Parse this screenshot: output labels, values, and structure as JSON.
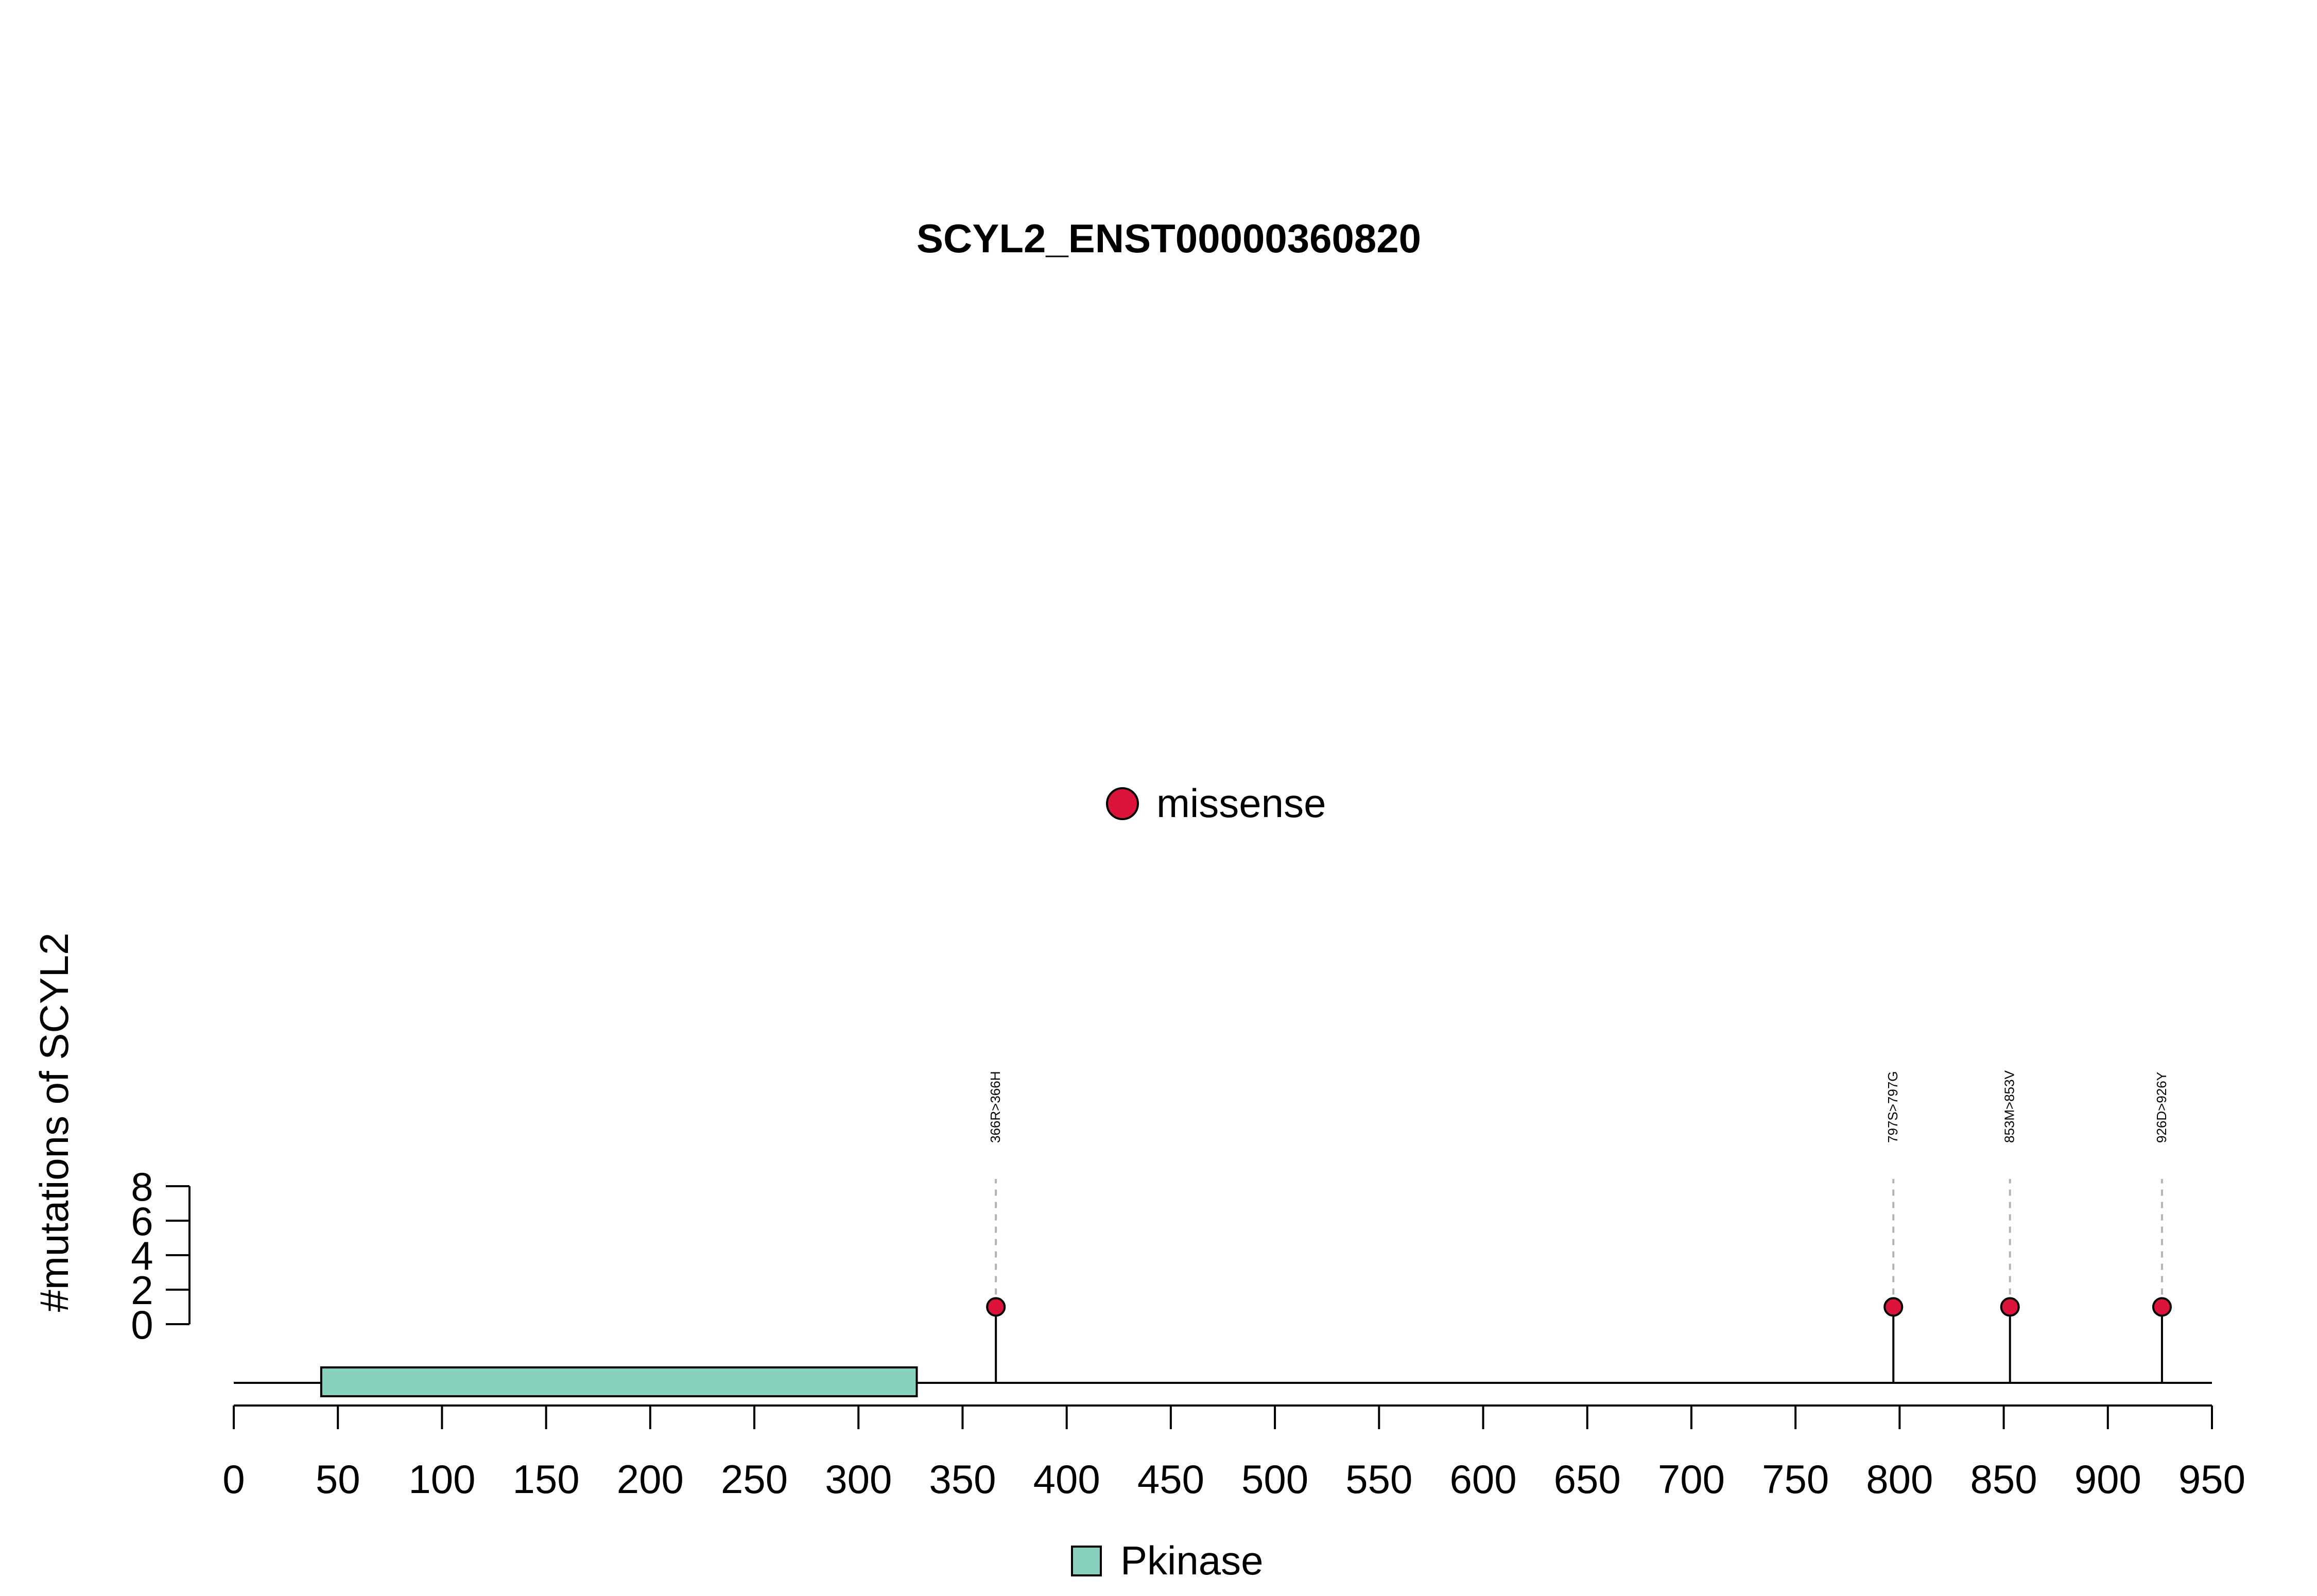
{
  "chart_data": {
    "type": "scatter",
    "title": "SCYL2_ENST00000360820",
    "ylabel": "#mutations of SCYL2",
    "xlabel": "",
    "xlim": [
      0,
      950
    ],
    "ylim": [
      0,
      8
    ],
    "x_ticks": [
      0,
      50,
      100,
      150,
      200,
      250,
      300,
      350,
      400,
      450,
      500,
      550,
      600,
      650,
      700,
      750,
      800,
      850,
      900,
      950
    ],
    "y_ticks": [
      0,
      2,
      4,
      6,
      8
    ],
    "protein_length": 950,
    "legend_top": {
      "placement": "top-center",
      "entries": [
        {
          "label": "missense",
          "color": "#DC143C"
        }
      ]
    },
    "domains": [
      {
        "name": "Pkinase",
        "start": 42,
        "end": 328,
        "color": "#88D1BE"
      }
    ],
    "legend_bottom": {
      "placement": "bottom-center",
      "entries": [
        {
          "label": "Pkinase",
          "color": "#88D1BE"
        }
      ]
    },
    "mutations": [
      {
        "position": 366,
        "count": 1,
        "label": "366R>366H",
        "type": "missense",
        "color": "#DC143C"
      },
      {
        "position": 797,
        "count": 1,
        "label": "797S>797G",
        "type": "missense",
        "color": "#DC143C"
      },
      {
        "position": 853,
        "count": 1,
        "label": "853M>853V",
        "type": "missense",
        "color": "#DC143C"
      },
      {
        "position": 926,
        "count": 1,
        "label": "926D>926Y",
        "type": "missense",
        "color": "#DC143C"
      }
    ]
  }
}
